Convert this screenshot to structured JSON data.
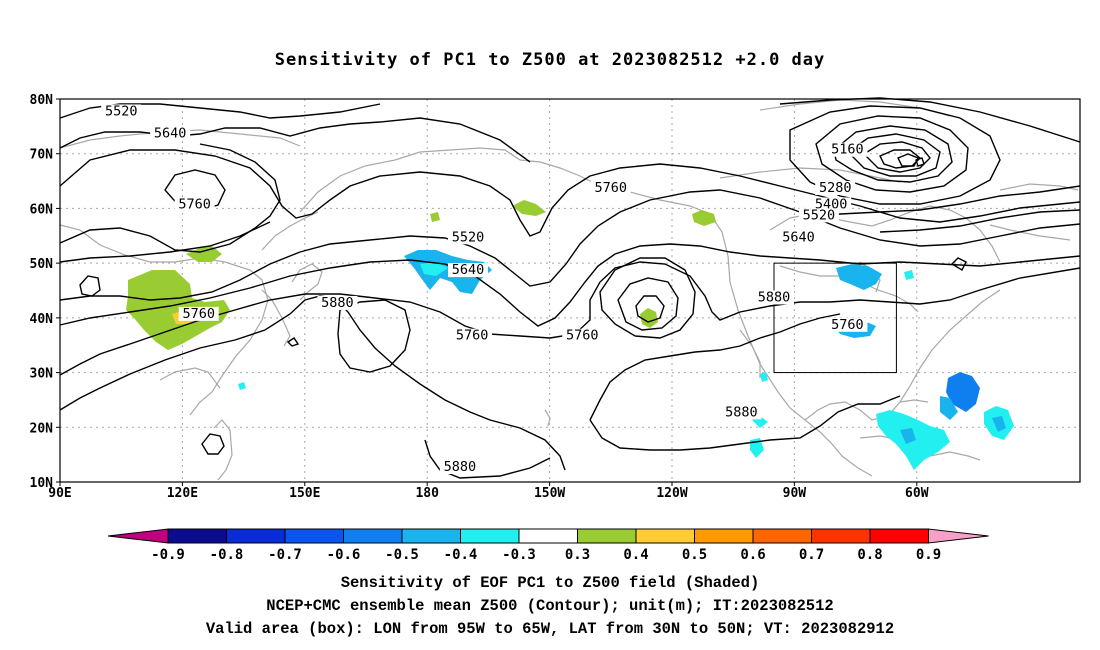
{
  "title": "Sensitivity of PC1 to Z500 at 2023082512 +2.0 day",
  "map": {
    "x_ticks": [
      "90E",
      "120E",
      "150E",
      "180",
      "150W",
      "120W",
      "90W",
      "60W"
    ],
    "y_ticks": [
      "80N",
      "70N",
      "60N",
      "50N",
      "40N",
      "30N",
      "20N",
      "10N"
    ],
    "lon_range": [
      90,
      340
    ],
    "lat_range": [
      10,
      80
    ],
    "contour_labels": [
      {
        "text": "5520",
        "lon": 105,
        "lat": 77
      },
      {
        "text": "5640",
        "lon": 117,
        "lat": 73
      },
      {
        "text": "5760",
        "lon": 123,
        "lat": 60
      },
      {
        "text": "5760",
        "lon": 124,
        "lat": 40
      },
      {
        "text": "5880",
        "lon": 158,
        "lat": 42
      },
      {
        "text": "5520",
        "lon": 190,
        "lat": 54
      },
      {
        "text": "5640",
        "lon": 190,
        "lat": 48
      },
      {
        "text": "5760",
        "lon": 191,
        "lat": 36
      },
      {
        "text": "5760",
        "lon": 225,
        "lat": 63
      },
      {
        "text": "5760",
        "lon": 218,
        "lat": 36
      },
      {
        "text": "5880",
        "lon": 188,
        "lat": 12
      },
      {
        "text": "5880",
        "lon": 265,
        "lat": 43
      },
      {
        "text": "5880",
        "lon": 257,
        "lat": 22
      },
      {
        "text": "5760",
        "lon": 283,
        "lat": 38
      },
      {
        "text": "5160",
        "lon": 283,
        "lat": 70
      },
      {
        "text": "5280",
        "lon": 280,
        "lat": 63
      },
      {
        "text": "5400",
        "lon": 279,
        "lat": 60
      },
      {
        "text": "5520",
        "lon": 276,
        "lat": 58
      },
      {
        "text": "5640",
        "lon": 271,
        "lat": 54
      }
    ],
    "valid_box": {
      "lon_min": 265,
      "lon_max": 295,
      "lat_min": 30,
      "lat_max": 50
    }
  },
  "colorbar": {
    "labels": [
      "-0.9",
      "-0.8",
      "-0.7",
      "-0.6",
      "-0.5",
      "-0.4",
      "-0.3",
      "0.3",
      "0.4",
      "0.5",
      "0.6",
      "0.7",
      "0.8",
      "0.9"
    ],
    "colors": [
      "#0b0b8f",
      "#0a2bd8",
      "#0a55f0",
      "#0f7fef",
      "#19b4ee",
      "#22f0f0",
      "#ffffff",
      "#99cc33",
      "#ffcc33",
      "#ff9900",
      "#ff6600",
      "#ff3300",
      "#ff0000"
    ],
    "left_cap_color": "#c0007f",
    "right_cap_color": "#f5a0c8"
  },
  "captions": [
    "Sensitivity of EOF PC1 to Z500 field (Shaded)",
    "NCEP+CMC ensemble mean Z500 (Contour); unit(m); IT:2023082512",
    "Valid area (box): LON from 95W to 65W, LAT from 30N to 50N; VT: 2023082912"
  ]
}
